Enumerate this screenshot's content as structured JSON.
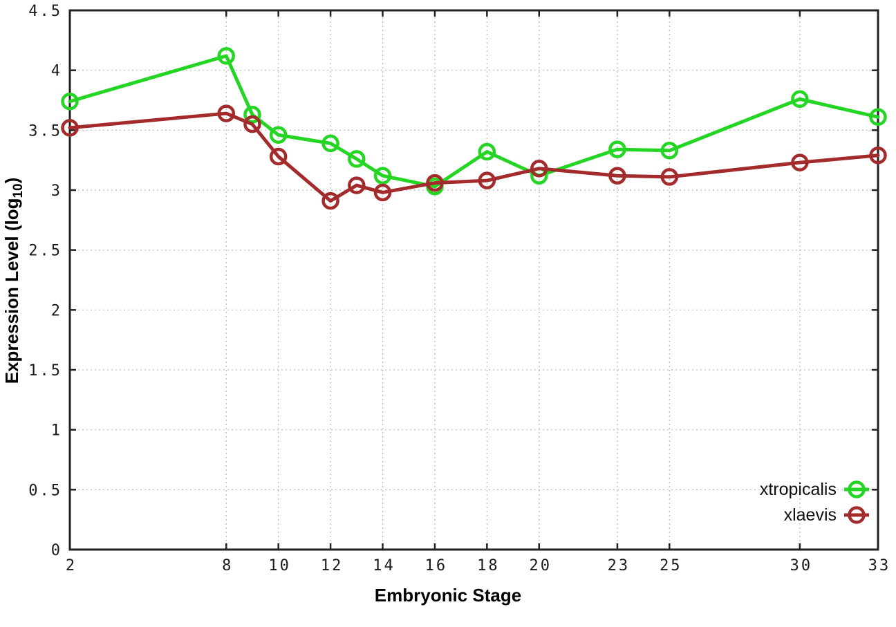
{
  "figure": {
    "xlabel": "Embryonic Stage",
    "ylabel_prefix": "Expression Level (log",
    "ylabel_sub": "10",
    "ylabel_suffix": ")"
  },
  "chart_data": {
    "type": "line",
    "title": "",
    "xlabel": "Embryonic Stage",
    "ylabel": "Expression Level (log10)",
    "x": [
      2,
      8,
      9,
      10,
      12,
      13,
      14,
      16,
      18,
      20,
      23,
      25,
      30,
      33
    ],
    "series": [
      {
        "name": "xtropicalis",
        "color": "#24d524",
        "values": [
          3.74,
          4.12,
          3.63,
          3.46,
          3.39,
          3.26,
          3.12,
          3.03,
          3.32,
          3.12,
          3.34,
          3.33,
          3.76,
          3.61
        ]
      },
      {
        "name": "xlaevis",
        "color": "#a32b2b",
        "values": [
          3.52,
          3.64,
          3.55,
          3.28,
          2.91,
          3.04,
          2.98,
          3.06,
          3.08,
          3.18,
          3.12,
          3.11,
          3.23,
          3.29
        ]
      }
    ],
    "xticks": [
      2,
      8,
      10,
      12,
      14,
      16,
      18,
      20,
      23,
      25,
      30,
      33
    ],
    "yticks": [
      0,
      0.5,
      1,
      1.5,
      2,
      2.5,
      3,
      3.5,
      4,
      4.5
    ],
    "xlim": [
      2,
      33
    ],
    "ylim": [
      0,
      4.5
    ],
    "grid": true,
    "legend_position": "bottom-right",
    "style": {
      "axis_color": "#222222",
      "grid_color": "#b9b9b9",
      "tick_label_color": "#1a1a1a",
      "legend_text_color": "#111111",
      "line_width": 5,
      "marker_radius": 10.5,
      "marker_stroke": 4.5
    }
  }
}
